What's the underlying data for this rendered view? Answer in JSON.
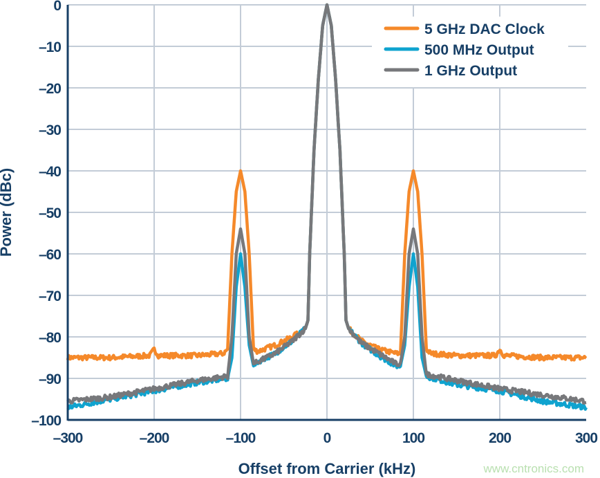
{
  "chart_data": {
    "type": "line",
    "title": "",
    "xlabel": "Offset from Carrier (kHz)",
    "ylabel": "Power (dBc)",
    "xlim": [
      -300,
      300
    ],
    "ylim": [
      -100,
      0
    ],
    "xticks": [
      -300,
      -200,
      -100,
      0,
      100,
      200,
      300
    ],
    "yticks": [
      0,
      -10,
      -20,
      -30,
      -40,
      -50,
      -60,
      -70,
      -80,
      -90,
      -100
    ],
    "xtick_labels": [
      "–300",
      "–200",
      "–100",
      "0",
      "100",
      "200",
      "300"
    ],
    "ytick_labels": [
      "0",
      "–10",
      "–20",
      "–30",
      "–40",
      "–50",
      "–60",
      "–70",
      "–80",
      "–90",
      "–100"
    ],
    "grid": true,
    "legend_position": "top-right",
    "series": [
      {
        "name": "5 GHz DAC Clock",
        "color": "#f5892a",
        "x": [
          -300,
          -250,
          -205,
          -200,
          -195,
          -150,
          -120,
          -115,
          -110,
          -105,
          -100,
          -95,
          -90,
          -85,
          -80,
          -60,
          -40,
          -25,
          -22,
          -20,
          -15,
          -10,
          -5,
          0,
          5,
          10,
          15,
          20,
          22,
          25,
          40,
          60,
          80,
          85,
          90,
          95,
          100,
          105,
          110,
          115,
          120,
          150,
          195,
          200,
          205,
          250,
          300
        ],
        "y": [
          -85,
          -85,
          -84.5,
          -83,
          -84.5,
          -84.5,
          -84,
          -83,
          -60,
          -45,
          -40,
          -45,
          -60,
          -83,
          -83.5,
          -82,
          -80,
          -78,
          -76,
          -60,
          -35,
          -18,
          -5,
          0,
          -5,
          -18,
          -35,
          -60,
          -76,
          -78,
          -81,
          -83,
          -84,
          -84,
          -60,
          -45,
          -40,
          -45,
          -60,
          -83,
          -84,
          -84.5,
          -84.5,
          -83,
          -84.5,
          -85,
          -85
        ]
      },
      {
        "name": "500 MHz Output",
        "color": "#0fa3cf",
        "x": [
          -300,
          -250,
          -200,
          -150,
          -115,
          -110,
          -105,
          -100,
          -95,
          -90,
          -85,
          -80,
          -60,
          -40,
          -25,
          -22,
          -20,
          -15,
          -10,
          -5,
          0,
          5,
          10,
          15,
          20,
          22,
          25,
          40,
          60,
          80,
          85,
          90,
          95,
          100,
          105,
          110,
          115,
          150,
          200,
          250,
          300
        ],
        "y": [
          -97,
          -95,
          -93,
          -91,
          -90,
          -85,
          -68,
          -60,
          -68,
          -82,
          -87,
          -86,
          -84,
          -81,
          -78,
          -76,
          -60,
          -35,
          -18,
          -5,
          0,
          -5,
          -18,
          -35,
          -60,
          -76,
          -78,
          -81.5,
          -84.5,
          -87,
          -87,
          -82,
          -68,
          -60,
          -68,
          -85,
          -89.5,
          -91.5,
          -93,
          -95.5,
          -97
        ]
      },
      {
        "name": "1 GHz Output",
        "color": "#77787b",
        "x": [
          -300,
          -250,
          -200,
          -150,
          -115,
          -110,
          -105,
          -100,
          -95,
          -90,
          -85,
          -80,
          -60,
          -40,
          -25,
          -22,
          -20,
          -15,
          -10,
          -5,
          0,
          5,
          10,
          15,
          20,
          22,
          25,
          40,
          60,
          80,
          85,
          90,
          95,
          100,
          105,
          110,
          115,
          150,
          200,
          250,
          300
        ],
        "y": [
          -95.5,
          -94.5,
          -92.5,
          -90.5,
          -89.5,
          -80,
          -60,
          -54,
          -60,
          -80,
          -86.5,
          -86,
          -84,
          -81,
          -78,
          -76,
          -60,
          -35,
          -18,
          -5,
          0,
          -5,
          -18,
          -35,
          -60,
          -76,
          -78,
          -81.5,
          -84,
          -86.5,
          -86.5,
          -80,
          -60,
          -54,
          -60,
          -80,
          -89,
          -90.5,
          -92.5,
          -94,
          -95.5
        ]
      }
    ],
    "watermark": "www.cntronics.com"
  }
}
